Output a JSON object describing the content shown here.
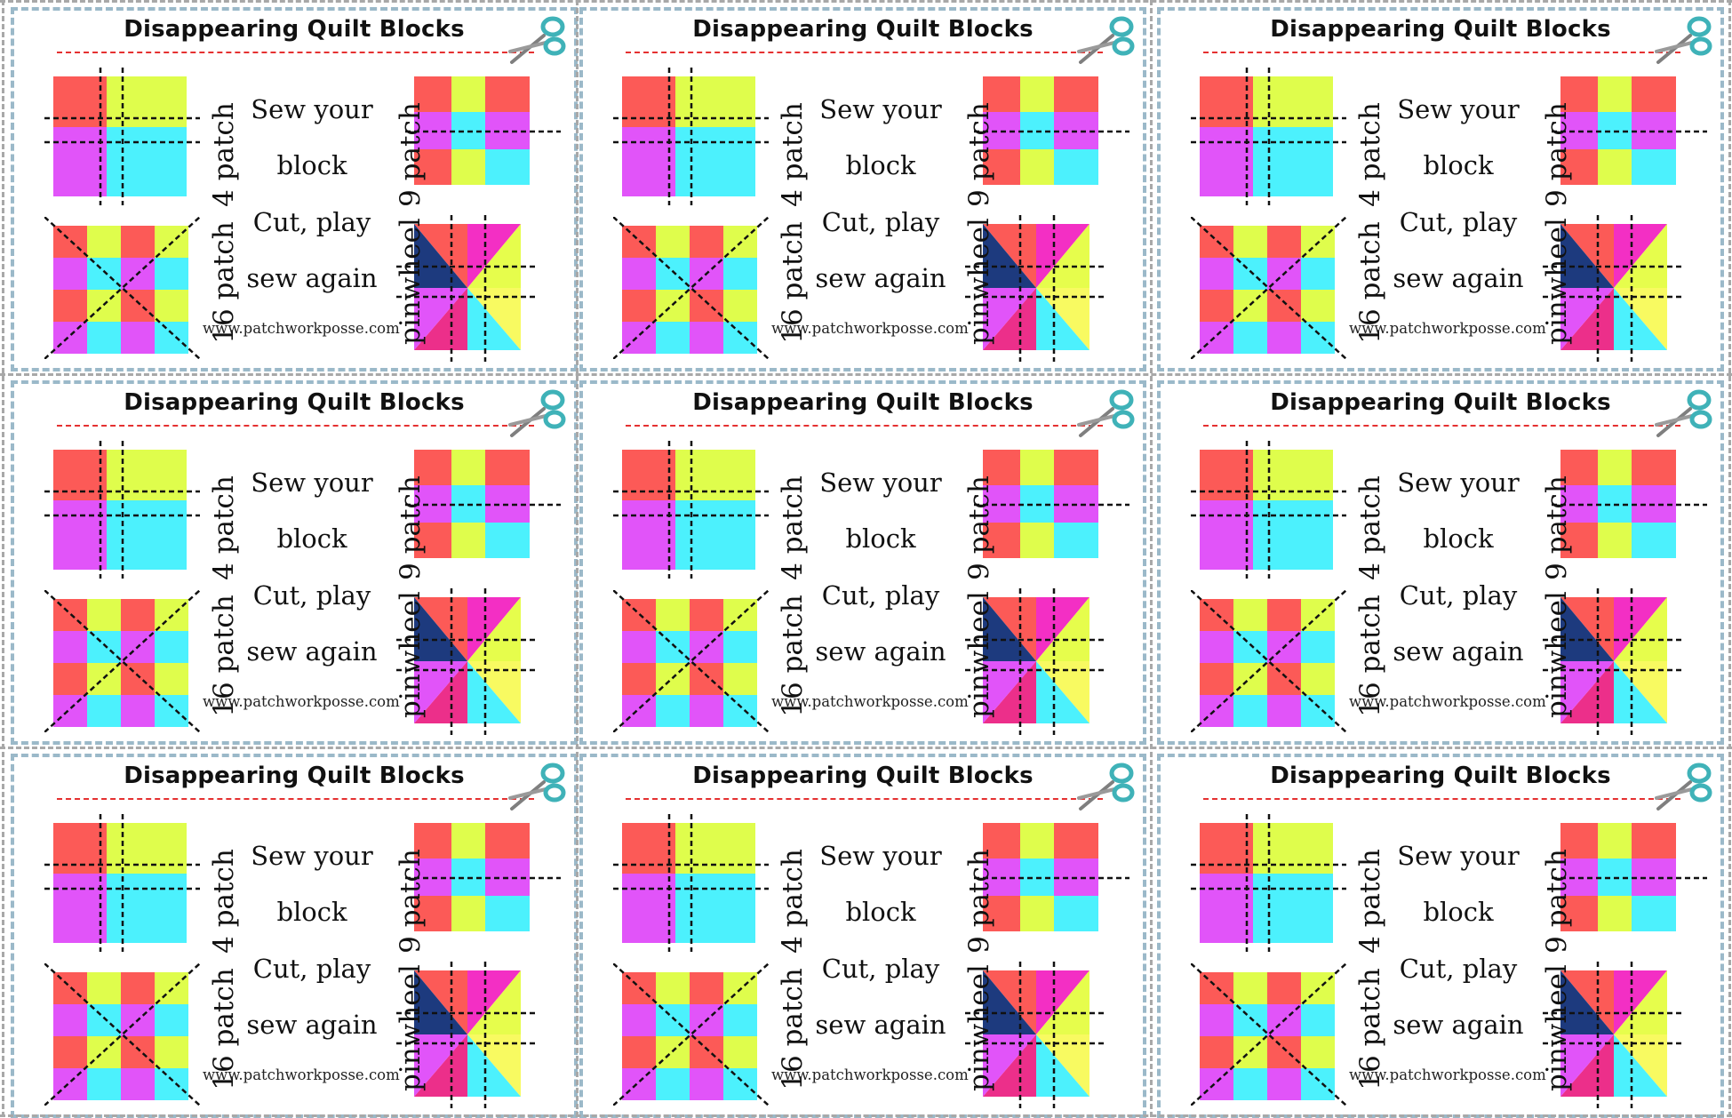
{
  "card": {
    "title": "Disappearing Quilt Blocks",
    "label_4": "4 patch",
    "label_9": "9 patch",
    "label_16": "16 patch",
    "label_pin": "pinwheel",
    "step1": "Sew your",
    "step2": "block",
    "step3": "Cut, play",
    "step4": "sew again",
    "url": "www.patchworkposse.com",
    "scissors_icon": "scissors-icon"
  },
  "colors": {
    "red": "#fc5a57",
    "yellow": "#dffd4c",
    "magenta": "#e154f9",
    "cyan": "#4cf1fd",
    "navy": "#1d3a7e",
    "pink": "#ec2f8a",
    "hot_pink": "#f32fc4",
    "pale_yellow": "#f8fa61",
    "lime": "#e6fd4c",
    "border": "#9bb9c9",
    "cut_line": "#e53030"
  },
  "grid": {
    "rows": 3,
    "cols": 3
  }
}
